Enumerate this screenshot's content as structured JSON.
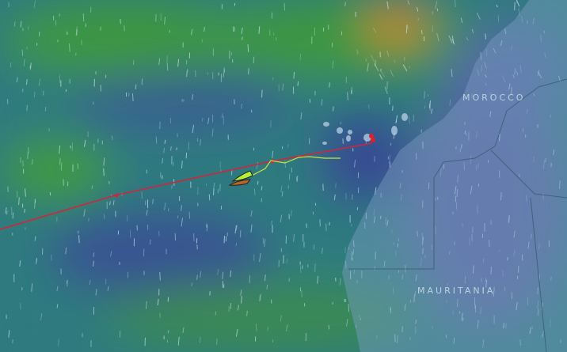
{
  "map": {
    "countries": [
      {
        "name": "MOROCCO"
      },
      {
        "name": "MAURITANIA"
      }
    ],
    "colors": {
      "ocean_base": "#2f7a7f",
      "wind_strong": "#3f9a3a",
      "wind_calm": "#3a4f95",
      "wind_gust": "#c7872a",
      "land": "#6a8fb0",
      "route": "#d0263a",
      "track": "#c8e63c",
      "boat": "#b4f03a",
      "ghost_boat": "#b8652a"
    },
    "icons": [
      "wind-streaks",
      "boat-icon",
      "ghost-boat-icon",
      "waypoint-markers",
      "mark-buoys"
    ]
  }
}
